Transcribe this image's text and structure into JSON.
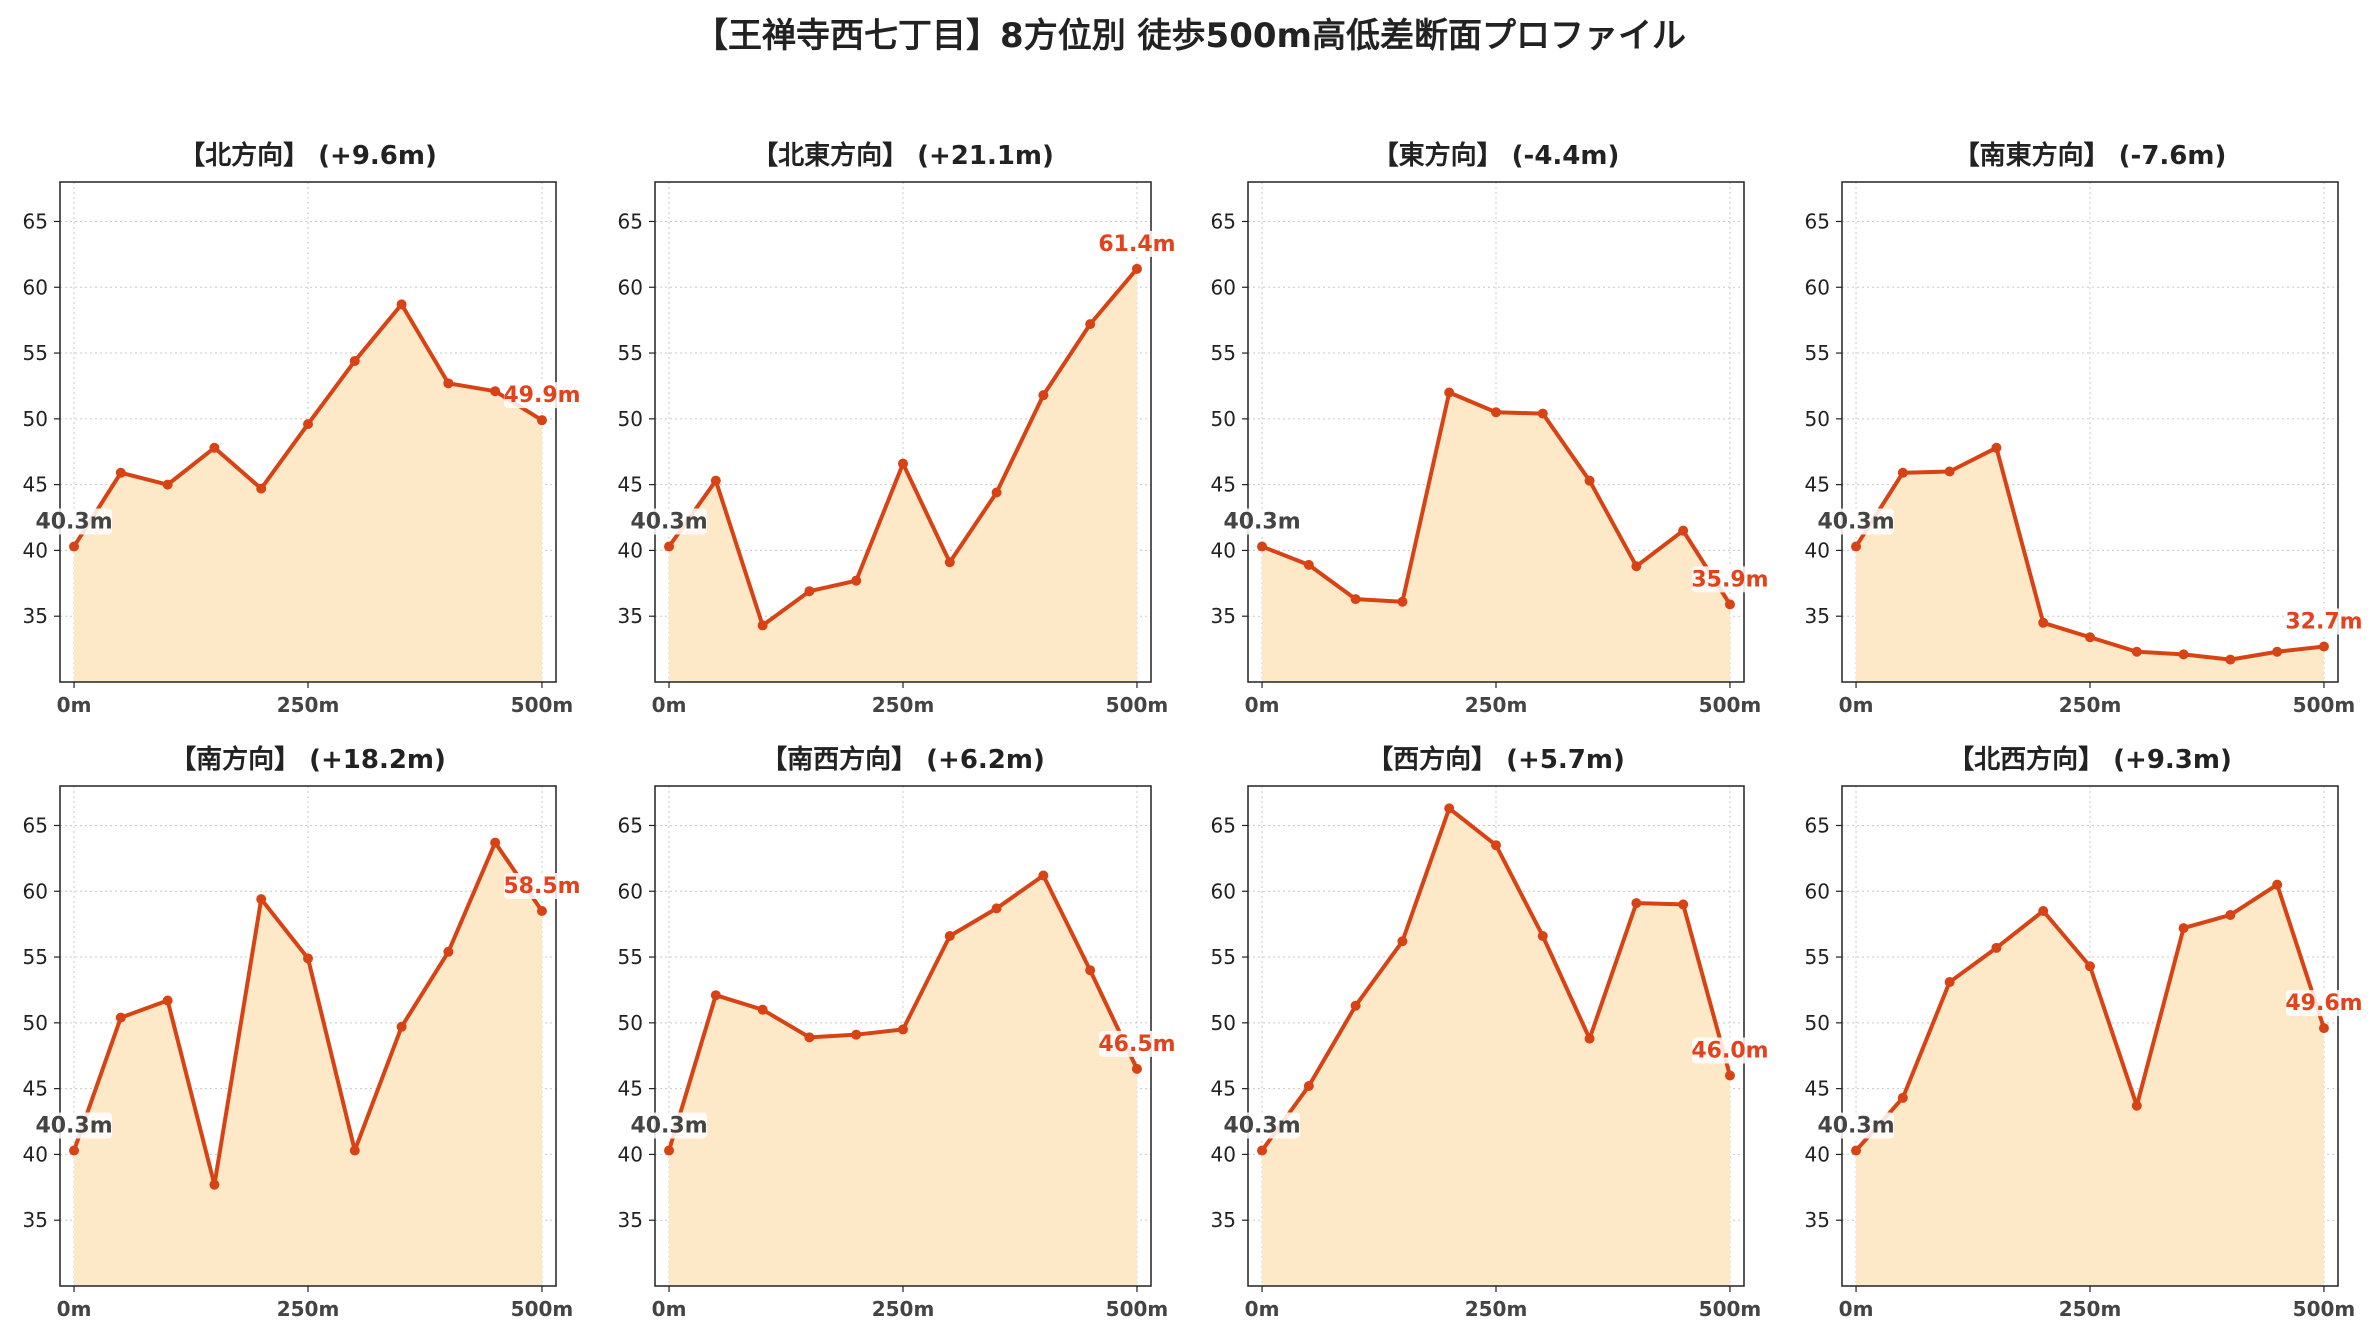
{
  "suptitle": "【王禅寺西七丁目】8方位別 徒歩500m高低差断面プロファイル",
  "colors": {
    "line": "#d84315",
    "fill": "#fde8c7",
    "end_label": "#e2431d",
    "start_label": "#444444"
  },
  "chart_data": [
    {
      "type": "area",
      "title": "【北方向】 (+9.6m)",
      "x": [
        0,
        50,
        100,
        150,
        200,
        250,
        300,
        350,
        400,
        450,
        500
      ],
      "values": [
        40.3,
        45.9,
        45.0,
        47.8,
        44.7,
        49.6,
        54.4,
        58.7,
        52.7,
        52.1,
        49.9
      ],
      "start_label": "40.3m",
      "end_label": "49.9m"
    },
    {
      "type": "area",
      "title": "【北東方向】 (+21.1m)",
      "x": [
        0,
        50,
        100,
        150,
        200,
        250,
        300,
        350,
        400,
        450,
        500
      ],
      "values": [
        40.3,
        45.3,
        34.3,
        36.9,
        37.7,
        46.6,
        39.1,
        44.4,
        51.8,
        57.2,
        61.4
      ],
      "start_label": "40.3m",
      "end_label": "61.4m"
    },
    {
      "type": "area",
      "title": "【東方向】 (-4.4m)",
      "x": [
        0,
        50,
        100,
        150,
        200,
        250,
        300,
        350,
        400,
        450,
        500
      ],
      "values": [
        40.3,
        38.9,
        36.3,
        36.1,
        52.0,
        50.5,
        50.4,
        45.3,
        38.8,
        41.5,
        35.9
      ],
      "start_label": "40.3m",
      "end_label": "35.9m"
    },
    {
      "type": "area",
      "title": "【南東方向】 (-7.6m)",
      "x": [
        0,
        50,
        100,
        150,
        200,
        250,
        300,
        350,
        400,
        450,
        500
      ],
      "values": [
        40.3,
        45.9,
        46.0,
        47.8,
        34.5,
        33.4,
        32.3,
        32.1,
        31.7,
        32.3,
        32.7
      ],
      "start_label": "40.3m",
      "end_label": "32.7m"
    },
    {
      "type": "area",
      "title": "【南方向】 (+18.2m)",
      "x": [
        0,
        50,
        100,
        150,
        200,
        250,
        300,
        350,
        400,
        450,
        500
      ],
      "values": [
        40.3,
        50.4,
        51.7,
        37.7,
        59.4,
        54.9,
        40.3,
        49.7,
        55.4,
        63.7,
        58.5
      ],
      "start_label": "40.3m",
      "end_label": "58.5m"
    },
    {
      "type": "area",
      "title": "【南西方向】 (+6.2m)",
      "x": [
        0,
        50,
        100,
        150,
        200,
        250,
        300,
        350,
        400,
        450,
        500
      ],
      "values": [
        40.3,
        52.1,
        51.0,
        48.9,
        49.1,
        49.5,
        56.6,
        58.7,
        61.2,
        54.0,
        46.5
      ],
      "start_label": "40.3m",
      "end_label": "46.5m"
    },
    {
      "type": "area",
      "title": "【西方向】 (+5.7m)",
      "x": [
        0,
        50,
        100,
        150,
        200,
        250,
        300,
        350,
        400,
        450,
        500
      ],
      "values": [
        40.3,
        45.2,
        51.3,
        56.2,
        66.3,
        63.5,
        56.6,
        48.8,
        59.1,
        59.0,
        46.0
      ],
      "start_label": "40.3m",
      "end_label": "46.0m"
    },
    {
      "type": "area",
      "title": "【北西方向】 (+9.3m)",
      "x": [
        0,
        50,
        100,
        150,
        200,
        250,
        300,
        350,
        400,
        450,
        500
      ],
      "values": [
        40.3,
        44.3,
        53.1,
        55.7,
        58.5,
        54.3,
        43.7,
        57.2,
        58.2,
        60.5,
        49.6
      ],
      "start_label": "40.3m",
      "end_label": "49.6m"
    }
  ],
  "axes": {
    "xlim": [
      -15,
      515
    ],
    "ylim": [
      30,
      68
    ],
    "xticks": [
      0,
      250,
      500
    ],
    "xtick_labels": [
      "0m",
      "250m",
      "500m"
    ],
    "yticks": [
      35,
      40,
      45,
      50,
      55,
      60,
      65
    ],
    "ytick_labels": [
      "35",
      "40",
      "45",
      "50",
      "55",
      "60",
      "65"
    ],
    "grid": true
  }
}
